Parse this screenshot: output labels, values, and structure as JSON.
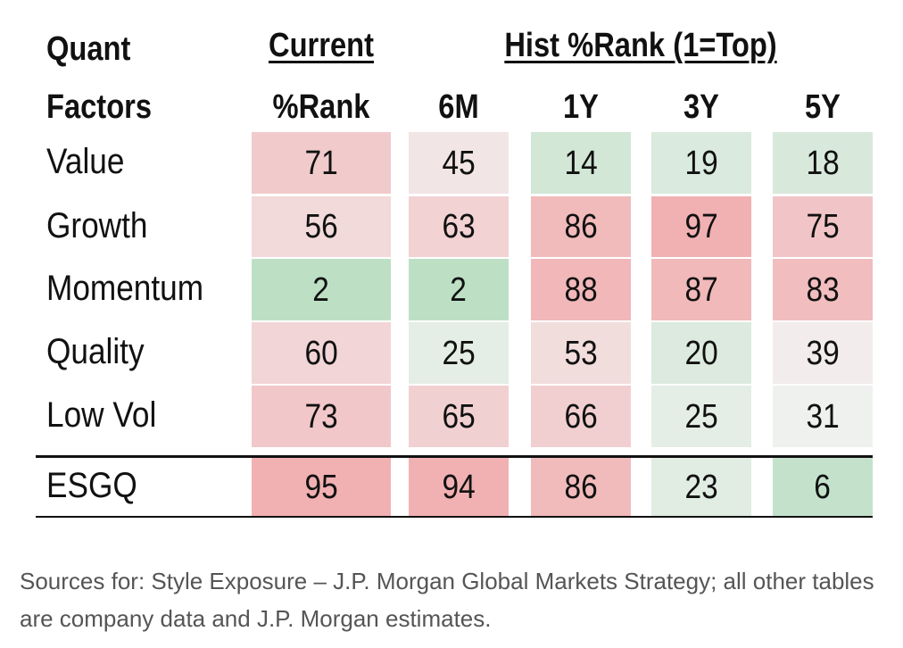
{
  "chart_data": {
    "type": "table",
    "header": {
      "factor_col": [
        "Quant",
        "Factors"
      ],
      "current_col": [
        "Current",
        "%Rank"
      ],
      "hist_group": "Hist %Rank (1=Top)",
      "hist_cols": [
        "6M",
        "1Y",
        "3Y",
        "5Y"
      ]
    },
    "rows": [
      {
        "factor": "Value",
        "values": [
          71,
          45,
          14,
          19,
          18
        ]
      },
      {
        "factor": "Growth",
        "values": [
          56,
          63,
          86,
          97,
          75
        ]
      },
      {
        "factor": "Momentum",
        "values": [
          2,
          2,
          88,
          87,
          83
        ]
      },
      {
        "factor": "Quality",
        "values": [
          60,
          25,
          53,
          20,
          39
        ]
      },
      {
        "factor": "Low Vol",
        "values": [
          73,
          65,
          66,
          25,
          31
        ]
      },
      {
        "factor": "ESGQ",
        "values": [
          95,
          94,
          86,
          23,
          6
        ]
      }
    ],
    "colors": {
      "low_good": "#bde0c5",
      "high_bad": "#f1b0b2",
      "neutral": "#f2f2f2"
    }
  },
  "footnote": "Sources for: Style Exposure – J.P. Morgan Global Markets Strategy; all other tables are company data and J.P. Morgan estimates."
}
